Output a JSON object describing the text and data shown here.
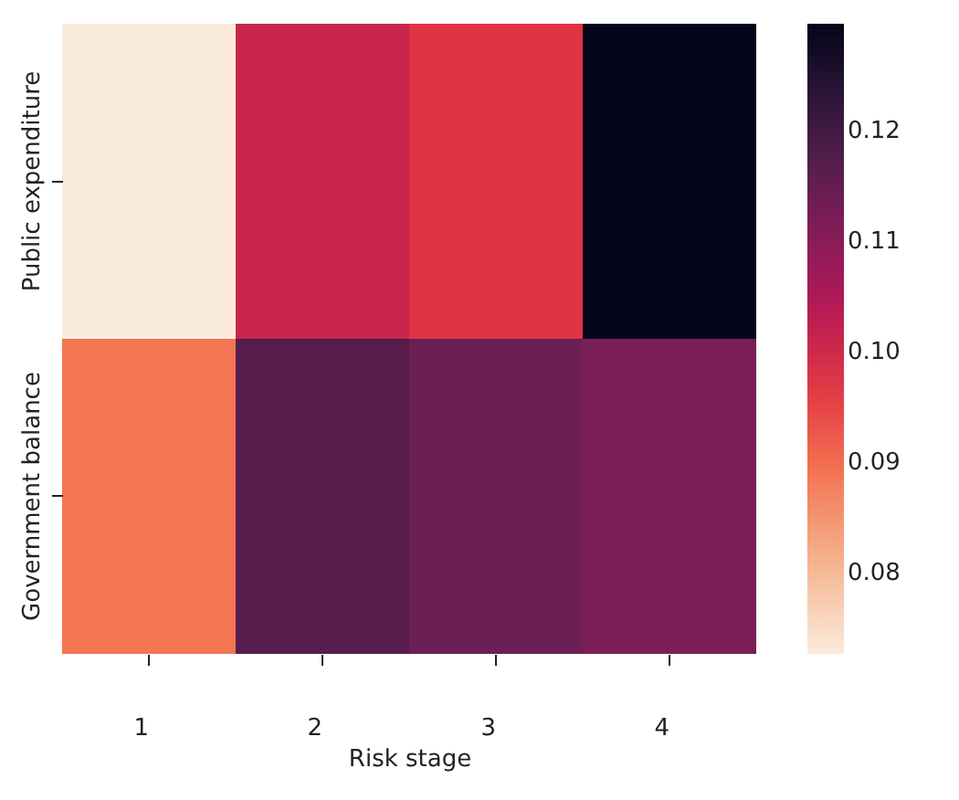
{
  "chart_data": {
    "type": "heatmap",
    "xlabel": "Risk stage",
    "categories": [
      "1",
      "2",
      "3",
      "4"
    ],
    "y_categories": [
      "Public expenditure",
      "Government balance"
    ],
    "cells": [
      [
        0.0726,
        0.101,
        0.097,
        0.1297
      ],
      [
        0.089,
        0.117,
        0.114,
        0.112
      ]
    ],
    "clim": [
      0.0726,
      0.1297
    ],
    "cticks": [
      0.08,
      0.09,
      {
        "value": 0.1,
        "label": "0.10"
      },
      0.11,
      0.12
    ]
  }
}
